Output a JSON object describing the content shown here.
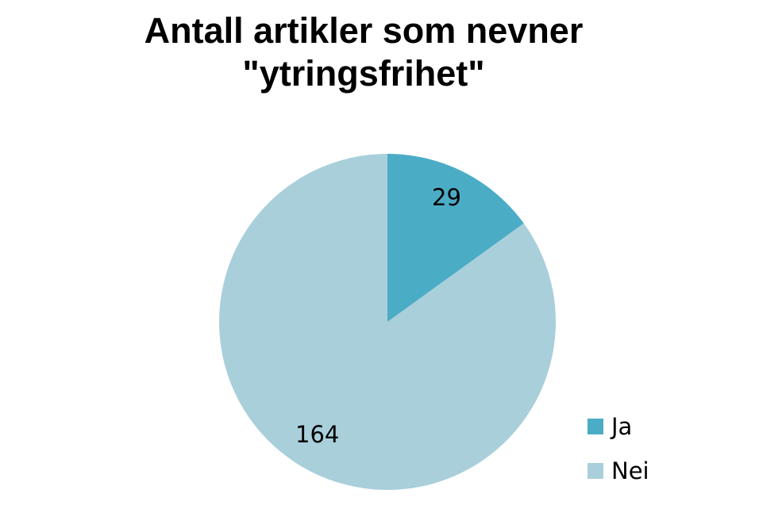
{
  "chart_data": {
    "type": "pie",
    "title": "Antall artikler som nevner \"ytringsfrihet\"",
    "title_lines": [
      "Antall artikler som nevner",
      "\"ytringsfrihet\""
    ],
    "categories": [
      "Ja",
      "Nei"
    ],
    "values": [
      29,
      164
    ],
    "colors": [
      "#4bacc6",
      "#a9cfdb"
    ],
    "data_labels": [
      "29",
      "164"
    ],
    "legend": {
      "position": "right-bottom",
      "entries": [
        "Ja",
        "Nei"
      ]
    }
  }
}
